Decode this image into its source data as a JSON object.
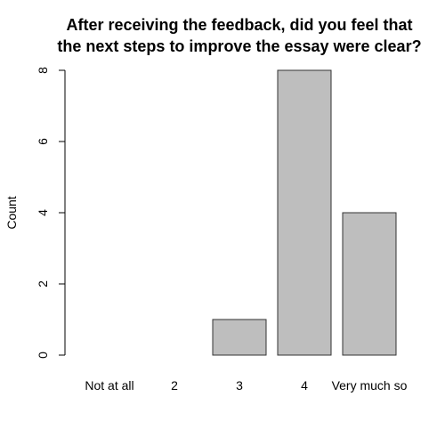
{
  "chart_data": {
    "type": "bar",
    "title_lines": [
      "After receiving the feedback, did you feel that",
      "the next steps to improve the essay were clear?"
    ],
    "categories": [
      "Not at all",
      "2",
      "3",
      "4",
      "Very much so"
    ],
    "values": [
      0,
      0,
      1,
      8,
      4
    ],
    "ylabel": "Count",
    "xlabel": "",
    "ylim": [
      0,
      8
    ],
    "yticks": [
      "0",
      "2",
      "4",
      "6",
      "8"
    ],
    "grid": false,
    "colors": {
      "bar_fill": "#bebebe",
      "bar_stroke": "#333333"
    }
  }
}
